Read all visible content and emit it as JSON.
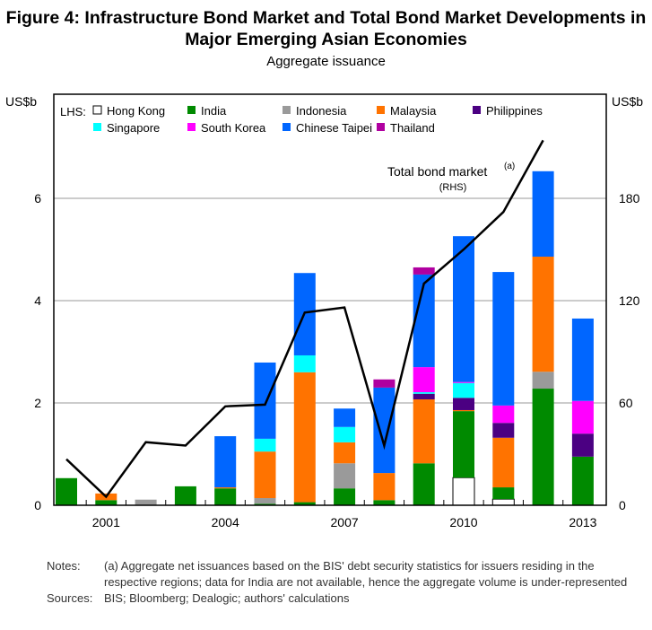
{
  "chart_data": {
    "type": "bar",
    "title": "Figure 4: Infrastructure Bond Market and Total Bond Market Developments in Major Emerging Asian Economies",
    "subtitle": "Aggregate issuance",
    "ylabel_left": "US$b",
    "ylabel_right": "US$b",
    "ylim_left": [
      0,
      8
    ],
    "ylim_right": [
      0,
      240
    ],
    "yticks_left": [
      0,
      2,
      4,
      6
    ],
    "yticks_right": [
      0,
      60,
      120,
      180
    ],
    "grid": true,
    "legend_prefix": "LHS:",
    "legend_position": "top",
    "categories": [
      2000,
      2001,
      2002,
      2003,
      2004,
      2005,
      2006,
      2007,
      2008,
      2009,
      2010,
      2011,
      2012,
      2013
    ],
    "xtick_labels": [
      "2001",
      "2004",
      "2007",
      "2010",
      "2013"
    ],
    "stacked": true,
    "series": [
      {
        "name": "Hong Kong",
        "color": "#ffffff",
        "values": [
          0,
          0,
          0,
          0,
          0,
          0,
          0,
          0,
          0,
          0,
          0.54,
          0.12,
          0,
          0
        ]
      },
      {
        "name": "India",
        "color": "#008a00",
        "values": [
          0.53,
          0.1,
          0,
          0.37,
          0.33,
          0.03,
          0.06,
          0.33,
          0.1,
          0.82,
          1.3,
          0.23,
          2.28,
          0.95
        ]
      },
      {
        "name": "Indonesia",
        "color": "#9a9a9a",
        "values": [
          0,
          0,
          0.11,
          0,
          0,
          0.11,
          0,
          0.49,
          0,
          0,
          0,
          0,
          0.33,
          0
        ]
      },
      {
        "name": "Malaysia",
        "color": "#ff7300",
        "values": [
          0,
          0.13,
          0,
          0,
          0.02,
          0.91,
          2.54,
          0.41,
          0.53,
          1.25,
          0.02,
          0.97,
          2.25,
          0
        ]
      },
      {
        "name": "Philippines",
        "color": "#4b0082",
        "values": [
          0,
          0,
          0,
          0,
          0,
          0,
          0,
          0,
          0,
          0.11,
          0.24,
          0.29,
          0,
          0.45
        ]
      },
      {
        "name": "Singapore",
        "color": "#00ffff",
        "values": [
          0,
          0,
          0,
          0,
          0,
          0.25,
          0.33,
          0.3,
          0,
          0.03,
          0.29,
          0,
          0,
          0
        ]
      },
      {
        "name": "South Korea",
        "color": "#ff00ff",
        "values": [
          0,
          0,
          0,
          0,
          0,
          0,
          0,
          0,
          0,
          0.49,
          0.02,
          0.34,
          0,
          0.64
        ]
      },
      {
        "name": "Chinese Taipei",
        "color": "#0066ff",
        "values": [
          0,
          0,
          0,
          0,
          1.0,
          1.49,
          1.61,
          0.36,
          1.67,
          1.81,
          2.85,
          2.61,
          1.67,
          1.61
        ]
      },
      {
        "name": "Thailand",
        "color": "#b000a0",
        "values": [
          0,
          0,
          0,
          0,
          0,
          0,
          0,
          0,
          0.16,
          0.14,
          0,
          0,
          0,
          0
        ]
      }
    ],
    "line": {
      "name": "Total bond market",
      "superscript": "(a)",
      "axis_note": "(RHS)",
      "axis": "right",
      "color": "#000000",
      "values": [
        27,
        5,
        37,
        35,
        58,
        59,
        113,
        116,
        35,
        130,
        150,
        172,
        214,
        null
      ]
    }
  },
  "notes": {
    "notes_label": "Notes:",
    "notes_text": "(a) Aggregate net issuances based on the BIS' debt security statistics for issuers residing in the respective regions; data for India are not available, hence the aggregate volume is under-represented",
    "sources_label": "Sources:",
    "sources_text": "BIS; Bloomberg; Dealogic; authors' calculations"
  }
}
